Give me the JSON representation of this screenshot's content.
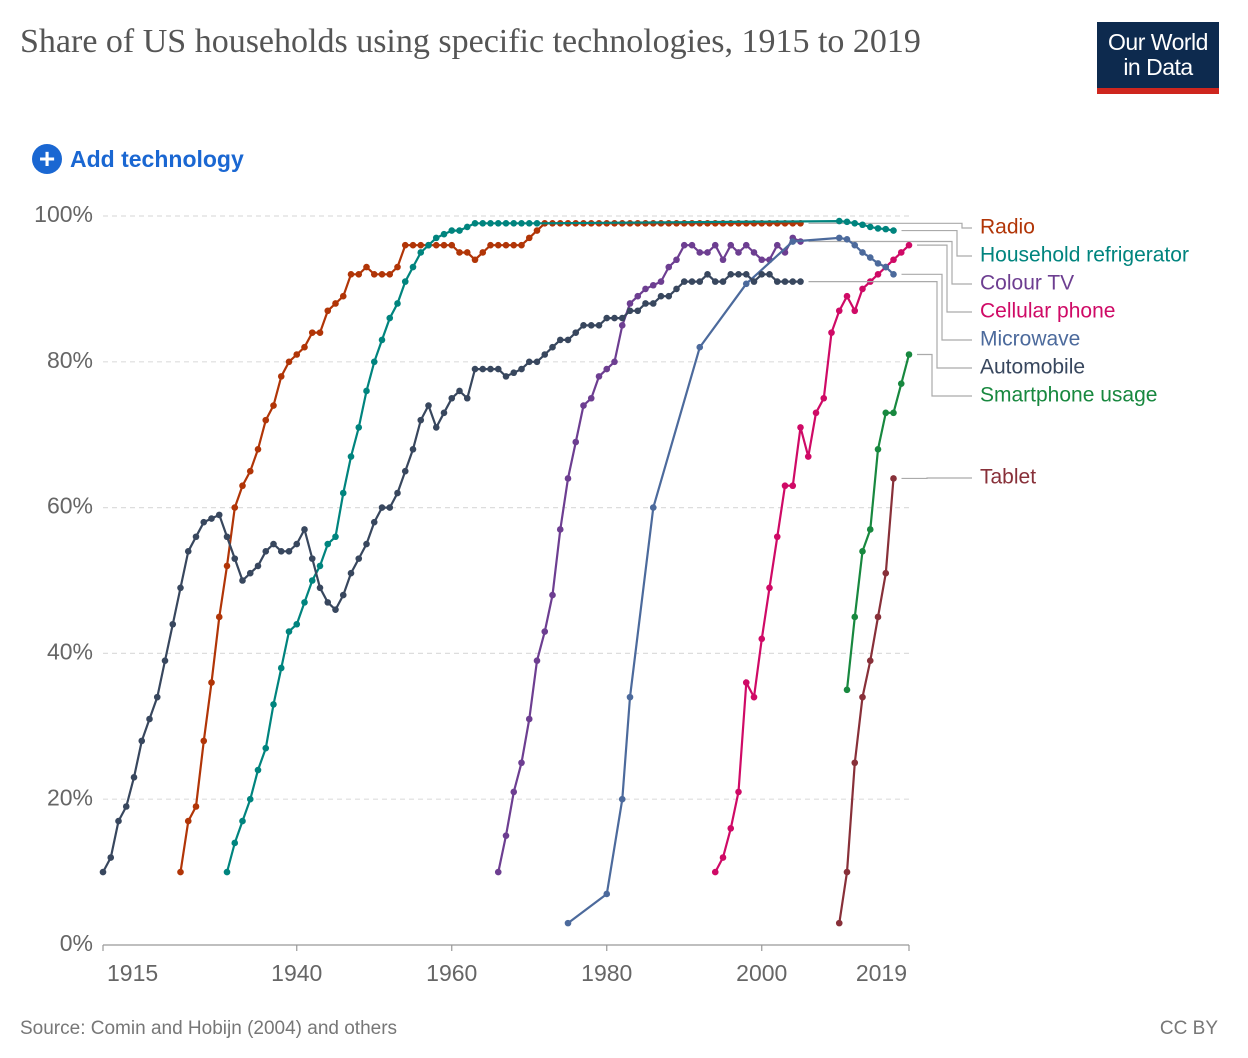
{
  "header": {
    "title": "Share of US households using specific technologies, 1915 to 2019",
    "logo": [
      "Our World",
      "in Data"
    ],
    "add_button": "Add technology"
  },
  "footer": {
    "source": "Source: Comin and Hobijn (2004) and others",
    "license": "CC BY"
  },
  "chart_data": {
    "type": "line",
    "grid": true,
    "xlim": [
      1915,
      2019
    ],
    "xticks": [
      1915,
      1940,
      1960,
      1980,
      2000,
      2019
    ],
    "ylim": [
      0,
      100
    ],
    "yticks": [
      {
        "value": 0,
        "label": "0%"
      },
      {
        "value": 20,
        "label": "20%"
      },
      {
        "value": 40,
        "label": "40%"
      },
      {
        "value": 60,
        "label": "60%"
      },
      {
        "value": 80,
        "label": "80%"
      },
      {
        "value": 100,
        "label": "100%"
      }
    ],
    "series": [
      {
        "name": "Radio",
        "color": "#b13507",
        "x": [
          1925,
          1926,
          1927,
          1928,
          1929,
          1930,
          1931,
          1932,
          1933,
          1934,
          1935,
          1936,
          1937,
          1938,
          1939,
          1940,
          1941,
          1942,
          1943,
          1944,
          1945,
          1946,
          1947,
          1948,
          1949,
          1950,
          1951,
          1952,
          1953,
          1954,
          1955,
          1956,
          1957,
          1958,
          1959,
          1960,
          1961,
          1962,
          1963,
          1964,
          1965,
          1966,
          1967,
          1968,
          1969,
          1970,
          1971,
          1972,
          1973,
          1974,
          1975,
          1976,
          1977,
          1978,
          1979,
          1980,
          1981,
          1982,
          1983,
          1984,
          1985,
          1986,
          1987,
          1988,
          1989,
          1990,
          1991,
          1992,
          1993,
          1994,
          1995,
          1996,
          1997,
          1998,
          1999,
          2000,
          2001,
          2002,
          2003,
          2004,
          2005
        ],
        "values": [
          10,
          17,
          19,
          28,
          36,
          45,
          52,
          60,
          63,
          65,
          68,
          72,
          74,
          78,
          80,
          81,
          82,
          84,
          84,
          87,
          88,
          89,
          92,
          92,
          93,
          92,
          92,
          92,
          93,
          96,
          96,
          96,
          96,
          96,
          96,
          96,
          95,
          95,
          94,
          95,
          96,
          96,
          96,
          96,
          96,
          97,
          98,
          99,
          99,
          99,
          99,
          99,
          99,
          99,
          99,
          99,
          99,
          99,
          99,
          99,
          99,
          99,
          99,
          99,
          99,
          99,
          99,
          99,
          99,
          99,
          99,
          99,
          99,
          99,
          99,
          99,
          99,
          99,
          99,
          99,
          99
        ]
      },
      {
        "name": "Household refrigerator",
        "color": "#00847e",
        "x": [
          1931,
          1932,
          1933,
          1934,
          1935,
          1936,
          1937,
          1938,
          1939,
          1940,
          1941,
          1942,
          1943,
          1944,
          1945,
          1946,
          1947,
          1948,
          1949,
          1950,
          1951,
          1952,
          1953,
          1954,
          1955,
          1956,
          1957,
          1958,
          1959,
          1960,
          1961,
          1962,
          1963,
          1964,
          1965,
          1966,
          1967,
          1968,
          1969,
          1970,
          1971,
          2010,
          2011,
          2012,
          2013,
          2014,
          2015,
          2016,
          2017
        ],
        "values": [
          10,
          14,
          17,
          20,
          24,
          27,
          33,
          38,
          43,
          44,
          47,
          50,
          52,
          55,
          56,
          62,
          67,
          71,
          76,
          80,
          83,
          86,
          88,
          91,
          93,
          95,
          96,
          97,
          97.5,
          98,
          98,
          98.5,
          99,
          99,
          99,
          99,
          99,
          99,
          99,
          99,
          99,
          99.3,
          99.2,
          99,
          98.8,
          98.5,
          98.3,
          98.2,
          98
        ]
      },
      {
        "name": "Colour TV",
        "color": "#6d3e91",
        "x": [
          1966,
          1967,
          1968,
          1969,
          1970,
          1971,
          1972,
          1973,
          1974,
          1975,
          1976,
          1977,
          1978,
          1979,
          1980,
          1981,
          1982,
          1983,
          1984,
          1985,
          1986,
          1987,
          1988,
          1989,
          1990,
          1991,
          1992,
          1993,
          1994,
          1995,
          1996,
          1997,
          1998,
          1999,
          2000,
          2001,
          2002,
          2003,
          2004,
          2005
        ],
        "values": [
          10,
          15,
          21,
          25,
          31,
          39,
          43,
          48,
          57,
          64,
          69,
          74,
          75,
          78,
          79,
          80,
          85,
          88,
          89,
          90,
          90.5,
          91,
          93,
          94,
          96,
          96,
          95,
          95,
          96,
          94,
          96,
          95,
          96,
          95,
          94,
          94,
          96,
          95,
          97,
          96.5
        ]
      },
      {
        "name": "Cellular phone",
        "color": "#cf0a66",
        "x": [
          1994,
          1995,
          1996,
          1997,
          1998,
          1999,
          2000,
          2001,
          2002,
          2003,
          2004,
          2005,
          2006,
          2007,
          2008,
          2009,
          2010,
          2011,
          2012,
          2013,
          2014,
          2015,
          2016,
          2017,
          2018,
          2019
        ],
        "values": [
          10,
          12,
          16,
          21,
          36,
          34,
          42,
          49,
          56,
          63,
          63,
          71,
          67,
          73,
          75,
          84,
          87,
          89,
          87,
          90,
          91,
          92,
          93,
          94,
          95,
          96
        ]
      },
      {
        "name": "Microwave",
        "color": "#4c6a9c",
        "x": [
          1975,
          1980,
          1982,
          1983,
          1986,
          1992,
          1998,
          2004,
          2010,
          2011,
          2012,
          2013,
          2014,
          2015,
          2016,
          2017
        ],
        "values": [
          3,
          7,
          20,
          34,
          60,
          82,
          90.7,
          96.5,
          97,
          96.8,
          96,
          95,
          94.3,
          93.5,
          93,
          92
        ]
      },
      {
        "name": "Automobile",
        "color": "#38475e",
        "x": [
          1915,
          1916,
          1917,
          1918,
          1919,
          1920,
          1921,
          1922,
          1923,
          1924,
          1925,
          1926,
          1927,
          1928,
          1929,
          1930,
          1931,
          1932,
          1933,
          1934,
          1935,
          1936,
          1937,
          1938,
          1939,
          1940,
          1941,
          1942,
          1943,
          1944,
          1945,
          1946,
          1947,
          1948,
          1949,
          1950,
          1951,
          1952,
          1953,
          1954,
          1955,
          1956,
          1957,
          1958,
          1959,
          1960,
          1961,
          1962,
          1963,
          1964,
          1965,
          1966,
          1967,
          1968,
          1969,
          1970,
          1971,
          1972,
          1973,
          1974,
          1975,
          1976,
          1977,
          1978,
          1979,
          1980,
          1981,
          1982,
          1983,
          1984,
          1985,
          1986,
          1987,
          1988,
          1989,
          1990,
          1991,
          1992,
          1993,
          1994,
          1995,
          1996,
          1997,
          1998,
          1999,
          2000,
          2001,
          2002,
          2003,
          2004,
          2005
        ],
        "values": [
          10,
          12,
          17,
          19,
          23,
          28,
          31,
          34,
          39,
          44,
          49,
          54,
          56,
          58,
          58.5,
          59,
          56,
          53,
          50,
          51,
          52,
          54,
          55,
          54,
          54,
          55,
          57,
          53,
          49,
          47,
          46,
          48,
          51,
          53,
          55,
          58,
          60,
          60,
          62,
          65,
          68,
          72,
          74,
          71,
          73,
          75,
          76,
          75,
          79,
          79,
          79,
          79,
          78,
          78.5,
          79,
          80,
          80,
          81,
          82,
          83,
          83,
          84,
          85,
          85,
          85,
          86,
          86,
          86,
          87,
          87,
          88,
          88,
          89,
          89,
          90,
          91,
          91,
          91,
          92,
          91,
          91,
          92,
          92,
          92,
          91,
          92,
          92,
          91,
          91,
          91,
          91
        ]
      },
      {
        "name": "Smartphone usage",
        "color": "#18883f",
        "x": [
          2011,
          2012,
          2013,
          2014,
          2015,
          2016,
          2017,
          2018,
          2019
        ],
        "values": [
          35,
          45,
          54,
          57,
          68,
          73,
          73,
          77,
          81
        ]
      },
      {
        "name": "Tablet",
        "color": "#883039",
        "x": [
          2010,
          2011,
          2012,
          2013,
          2014,
          2015,
          2016,
          2017
        ],
        "values": [
          3,
          10,
          25,
          34,
          39,
          45,
          51,
          64
        ]
      }
    ]
  }
}
